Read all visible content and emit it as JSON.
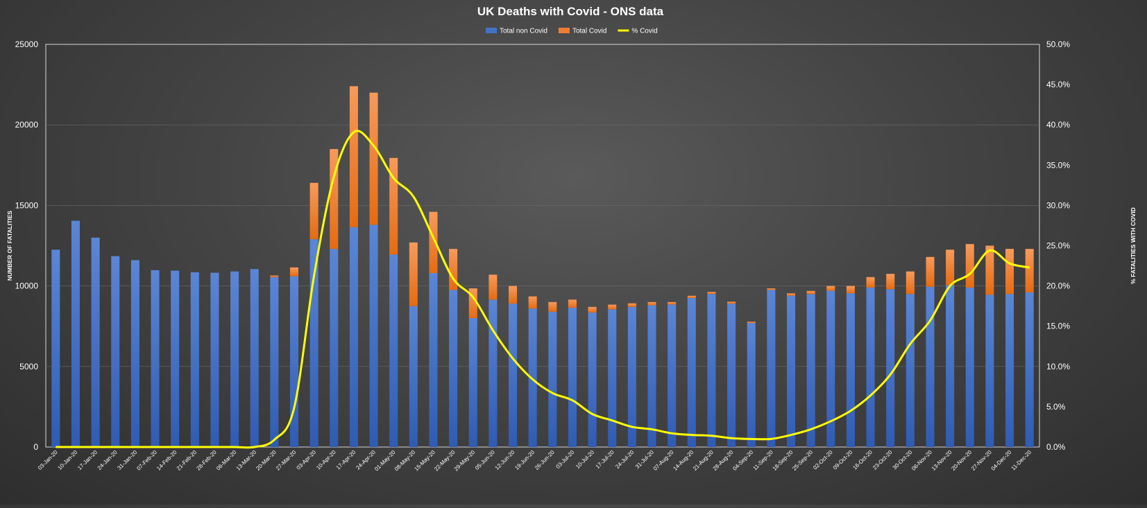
{
  "chart_data": {
    "type": "bar",
    "stacked": true,
    "title": "UK Deaths with Covid - ONS data",
    "xlabel": "",
    "ylabel": "NUMBER OF FATALITIES",
    "y2label": "% FATALITIES WITH COVID",
    "ylim": [
      0,
      25000
    ],
    "y2lim": [
      0,
      50
    ],
    "yticks": [
      "0",
      "5000",
      "10000",
      "15000",
      "20000",
      "25000"
    ],
    "y2ticks": [
      "0.0%",
      "5.0%",
      "10.0%",
      "15.0%",
      "20.0%",
      "25.0%",
      "30.0%",
      "35.0%",
      "40.0%",
      "45.0%",
      "50.0%"
    ],
    "grid": true,
    "legend_position": "top-center",
    "categories": [
      "03-Jan-20",
      "10-Jan-20",
      "17-Jan-20",
      "24-Jan-20",
      "31-Jan-20",
      "07-Feb-20",
      "14-Feb-20",
      "21-Feb-20",
      "28-Feb-20",
      "06-Mar-20",
      "13-Mar-20",
      "20-Mar-20",
      "27-Mar-20",
      "03-Apr-20",
      "10-Apr-20",
      "17-Apr-20",
      "24-Apr-20",
      "01-May-20",
      "08-May-20",
      "15-May-20",
      "22-May-20",
      "29-May-20",
      "05-Jun-20",
      "12-Jun-20",
      "19-Jun-20",
      "26-Jun-20",
      "03-Jul-20",
      "10-Jul-20",
      "17-Jul-20",
      "24-Jul-20",
      "31-Jul-20",
      "07-Aug-20",
      "14-Aug-20",
      "21-Aug-20",
      "28-Aug-20",
      "04-Sep-20",
      "11-Sep-20",
      "18-Sep-20",
      "25-Sep-20",
      "02-Oct-20",
      "09-Oct-20",
      "16-Oct-20",
      "23-Oct-20",
      "30-Oct-20",
      "06-Nov-20",
      "13-Nov-20",
      "20-Nov-20",
      "27-Nov-20",
      "04-Dec-20",
      "11-Dec-20"
    ],
    "series": [
      {
        "name": "Total non Covid",
        "kind": "bar",
        "color": "#4472C4",
        "values": [
          12250,
          14050,
          13000,
          11850,
          11600,
          10980,
          10950,
          10850,
          10820,
          10900,
          11050,
          10550,
          10600,
          12900,
          12300,
          13650,
          13800,
          11950,
          8750,
          10800,
          9750,
          8000,
          9150,
          8900,
          8600,
          8400,
          8650,
          8350,
          8550,
          8700,
          8800,
          8850,
          9250,
          9500,
          8900,
          7700,
          9750,
          9400,
          9500,
          9700,
          9550,
          9900,
          9800,
          9500,
          9950,
          10050,
          9900,
          9450,
          9500,
          9600
        ]
      },
      {
        "name": "Total Covid",
        "kind": "bar",
        "color": "#ED7D31",
        "values": [
          0,
          0,
          0,
          0,
          0,
          0,
          0,
          0,
          0,
          0,
          0,
          100,
          550,
          3500,
          6200,
          8750,
          8200,
          6000,
          3950,
          3800,
          2550,
          1850,
          1550,
          1100,
          750,
          600,
          500,
          350,
          290,
          220,
          200,
          150,
          140,
          130,
          120,
          80,
          100,
          140,
          190,
          300,
          450,
          650,
          950,
          1400,
          1850,
          2200,
          2700,
          3050,
          2800,
          2700
        ]
      },
      {
        "name": "% Covid",
        "kind": "line",
        "axis": "right",
        "color": "#FFFF00",
        "values": [
          0,
          0,
          0,
          0,
          0,
          0,
          0,
          0,
          0,
          0,
          0,
          0.9,
          4.9,
          21.3,
          33.6,
          39.1,
          37.4,
          33.4,
          31.1,
          26.0,
          20.9,
          18.6,
          14.5,
          11.0,
          8.4,
          6.7,
          5.8,
          4.1,
          3.3,
          2.5,
          2.2,
          1.7,
          1.5,
          1.4,
          1.1,
          1.0,
          1.0,
          1.5,
          2.2,
          3.2,
          4.5,
          6.4,
          9.0,
          12.8,
          15.7,
          20.0,
          21.5,
          24.4,
          22.8,
          22.3
        ]
      }
    ]
  }
}
